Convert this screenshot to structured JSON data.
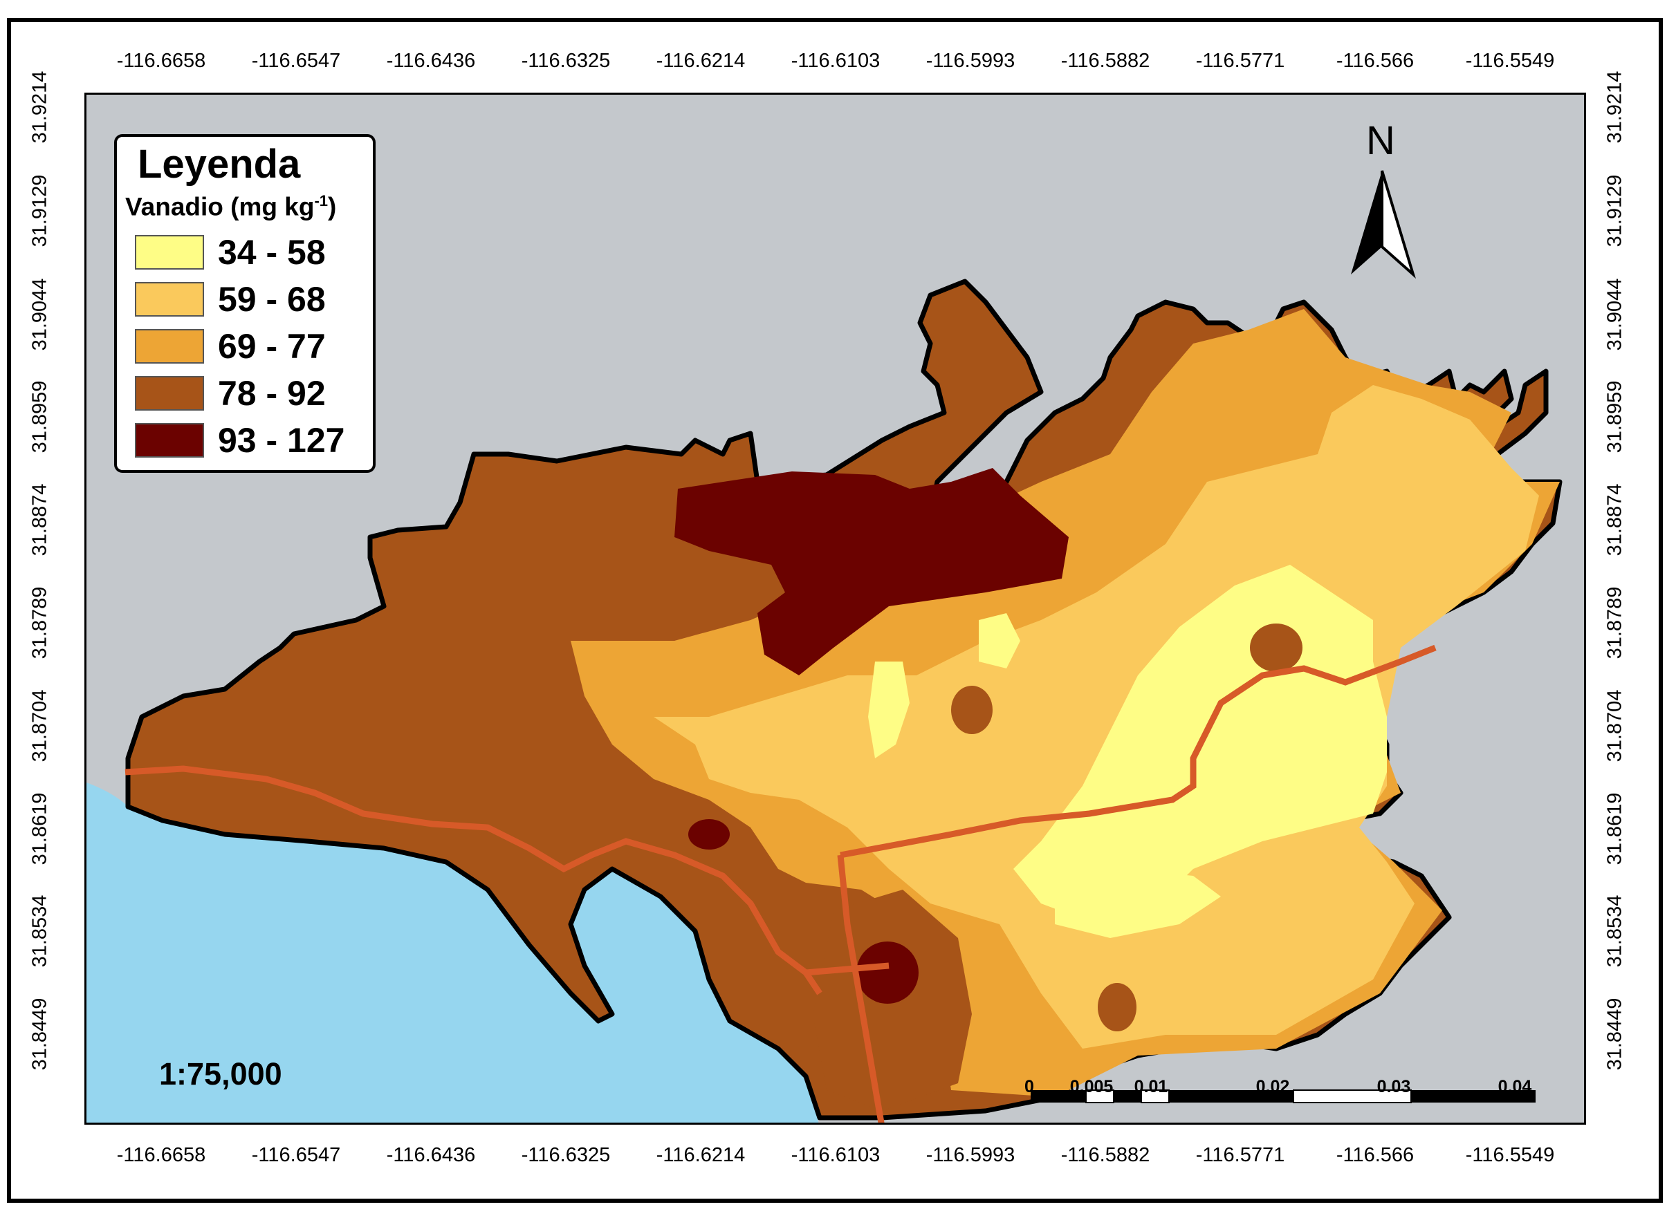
{
  "map": {
    "longitude_ticks": [
      "-116.6658",
      "-116.6547",
      "-116.6436",
      "-116.6325",
      "-116.6214",
      "-116.6103",
      "-116.5993",
      "-116.5882",
      "-116.5771",
      "-116.566",
      "-116.5549"
    ],
    "latitude_ticks": [
      "31.9214",
      "31.9129",
      "31.9044",
      "31.8959",
      "31.8874",
      "31.8789",
      "31.8704",
      "31.8619",
      "31.8534",
      "31.8449"
    ],
    "scale_text": "1:75,000",
    "north_label": "N",
    "water_color": "#96d6ef",
    "land_color": "#c4c8cc"
  },
  "legend": {
    "title": "Leyenda",
    "subtitle": "Vanadio (mg kg",
    "subtitle_sup": "-1",
    "subtitle_end": ")",
    "items": [
      {
        "label": "34 - 58",
        "color": "#fefd86"
      },
      {
        "label": "59 - 68",
        "color": "#fac95c"
      },
      {
        "label": "69 - 77",
        "color": "#eda535"
      },
      {
        "label": "78 - 92",
        "color": "#a75418"
      },
      {
        "label": "93 - 127",
        "color": "#6b0200"
      }
    ]
  },
  "scalebar": {
    "labels": [
      "0",
      "0.005",
      "0.01",
      "0.02",
      "0.03",
      "0.04"
    ]
  }
}
